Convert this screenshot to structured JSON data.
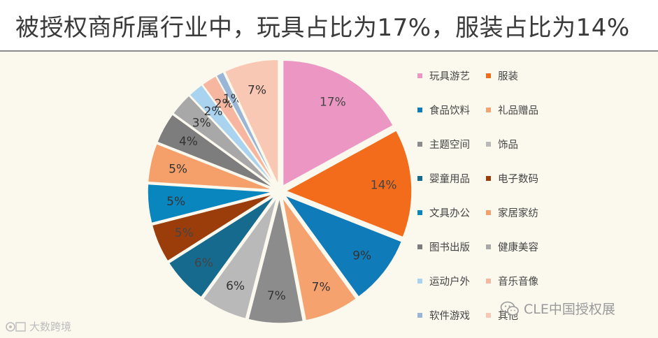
{
  "header": {
    "title": "被授权商所属行业中，玩具占比为17%，服装占比为14%"
  },
  "chart_data": {
    "type": "pie",
    "title": "被授权商所属行业中，玩具占比为17%，服装占比为14%",
    "label_suffix": "%",
    "legend_position": "right",
    "slices": [
      {
        "name": "玩具游艺",
        "value": 17,
        "color": "#ec96c4",
        "label_color": "#444444"
      },
      {
        "name": "服装",
        "value": 14,
        "color": "#f26c1c",
        "label_color": "#444444"
      },
      {
        "name": "食品饮料",
        "value": 9,
        "color": "#0f7bb8",
        "label_color": "#333333"
      },
      {
        "name": "礼品赠品",
        "value": 7,
        "color": "#f6a26e",
        "label_color": "#333333"
      },
      {
        "name": "主题空间",
        "value": 7,
        "color": "#8c8c8c",
        "label_color": "#333333"
      },
      {
        "name": "饰品",
        "value": 6,
        "color": "#b9b9b9",
        "label_color": "#333333"
      },
      {
        "name": "婴童用品",
        "value": 6,
        "color": "#156a8e",
        "label_color": "#444444"
      },
      {
        "name": "电子数码",
        "value": 5,
        "color": "#9b3d0a",
        "label_color": "#444444"
      },
      {
        "name": "文具办公",
        "value": 5,
        "color": "#0a86bf",
        "label_color": "#333333"
      },
      {
        "name": "家居家纺",
        "value": 5,
        "color": "#f5a06a",
        "label_color": "#333333"
      },
      {
        "name": "图书出版",
        "value": 4,
        "color": "#7d7d7d",
        "label_color": "#333333"
      },
      {
        "name": "健康美容",
        "value": 3,
        "color": "#a8a8a8",
        "label_color": "#333333"
      },
      {
        "name": "运动户外",
        "value": 2,
        "color": "#a9d3ee",
        "label_color": "#333333"
      },
      {
        "name": "音乐音像",
        "value": 2,
        "color": "#f7b6a0",
        "label_color": "#333333"
      },
      {
        "name": "软件游戏",
        "value": 1,
        "color": "#9ab6d6",
        "label_color": "#333333"
      },
      {
        "name": "其他",
        "value": 7,
        "color": "#f9c8b4",
        "label_color": "#333333"
      }
    ]
  },
  "watermarks": {
    "right": "CLE中国授权展",
    "left": "大数跨境"
  }
}
